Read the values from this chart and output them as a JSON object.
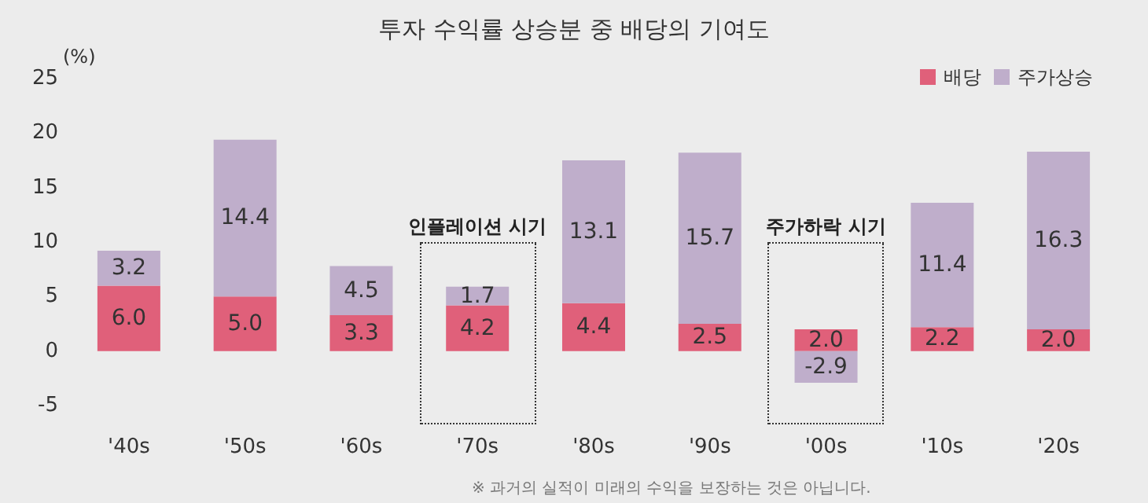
{
  "chart_data": {
    "type": "bar",
    "title": "투자 수익률 상승분 중 배당의 기여도",
    "ylabel": "(%)",
    "categories": [
      "'40s",
      "'50s",
      "'60s",
      "'70s",
      "'80s",
      "'90s",
      "'00s",
      "'10s",
      "'20s"
    ],
    "stacked": true,
    "series": [
      {
        "name": "배당",
        "color": "#e0607a",
        "values": [
          6.0,
          5.0,
          3.3,
          4.2,
          4.4,
          2.5,
          2.0,
          2.2,
          2.0
        ],
        "value_labels": [
          "6.0",
          "5.0",
          "3.3",
          "4.2",
          "4.4",
          "2.5",
          "2.0",
          "2.2",
          "2.0"
        ]
      },
      {
        "name": "주가상승",
        "color": "#bfaecb",
        "values": [
          3.2,
          14.4,
          4.5,
          1.7,
          13.1,
          15.7,
          -2.9,
          11.4,
          16.3
        ],
        "value_labels": [
          "3.2",
          "14.4",
          "4.5",
          "1.7",
          "13.1",
          "15.7",
          "-2.9",
          "11.4",
          "16.3"
        ]
      }
    ],
    "ylim": [
      -5,
      25
    ],
    "yticks": [
      -5,
      0,
      5,
      10,
      15,
      20,
      25
    ],
    "grid": false,
    "legend": "top right",
    "annotations": [
      "인플레이션 시기",
      "주가하락 시기",
      "※ 과거의 실적이 미래의 수익을 보장하는 것은 아닙니다."
    ]
  }
}
